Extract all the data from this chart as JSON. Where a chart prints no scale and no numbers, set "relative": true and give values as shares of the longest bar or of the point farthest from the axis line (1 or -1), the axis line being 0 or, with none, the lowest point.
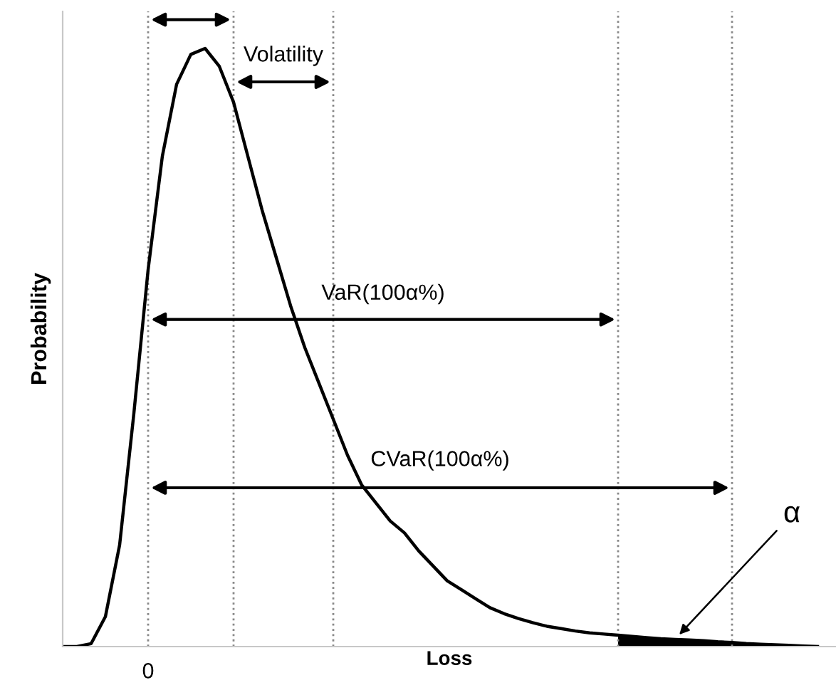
{
  "chart_data": {
    "type": "line",
    "relative": true,
    "xlabel": "Loss",
    "ylabel": "Probability",
    "categories": [
      null,
      null,
      null,
      null,
      null,
      null,
      null,
      null,
      null,
      null,
      null,
      null,
      null,
      null,
      null,
      null,
      null,
      null,
      null,
      null,
      null,
      null,
      null,
      null,
      null,
      null,
      null,
      null,
      null,
      null,
      null,
      null,
      null,
      null,
      null,
      null,
      null,
      null,
      null,
      null,
      null,
      null,
      null,
      null,
      null,
      null,
      null,
      null,
      null,
      null,
      null,
      null,
      null,
      null
    ],
    "series": [
      {
        "color": "#000000",
        "values": [
          0,
          0,
          0.005,
          0.05,
          0.17,
          0.39,
          0.63,
          0.82,
          0.94,
          0.99,
          1.0,
          0.97,
          0.91,
          0.82,
          0.73,
          0.65,
          0.57,
          0.5,
          0.44,
          0.38,
          0.32,
          0.27,
          0.24,
          0.21,
          0.19,
          0.16,
          0.135,
          0.11,
          0.095,
          0.08,
          0.065,
          0.055,
          0.047,
          0.04,
          0.034,
          0.03,
          0.026,
          0.023,
          0.021,
          0.019,
          0.017,
          0.015,
          0.013,
          0.012,
          0.011,
          0.01,
          0.008,
          0.007,
          0.005,
          0.004,
          0.003,
          0.002,
          0.001,
          0
        ]
      },
      {
        "type": "area",
        "color": "#000000",
        "values": [
          null,
          null,
          null,
          null,
          null,
          null,
          null,
          null,
          null,
          null,
          null,
          null,
          null,
          null,
          null,
          null,
          null,
          null,
          null,
          null,
          null,
          null,
          null,
          null,
          null,
          null,
          null,
          null,
          null,
          null,
          null,
          null,
          null,
          null,
          null,
          null,
          null,
          null,
          null,
          0.019,
          0.017,
          0.015,
          0.013,
          0.012,
          0.011,
          0.01,
          0.008,
          0.007,
          0.005,
          0.004,
          0.003,
          0.002,
          0.001,
          0
        ]
      }
    ],
    "annotations": [
      "0",
      "Volatility",
      "VaR(100α%)",
      "CVaR(100α%)",
      "α"
    ],
    "grid": "x",
    "legend": false
  }
}
